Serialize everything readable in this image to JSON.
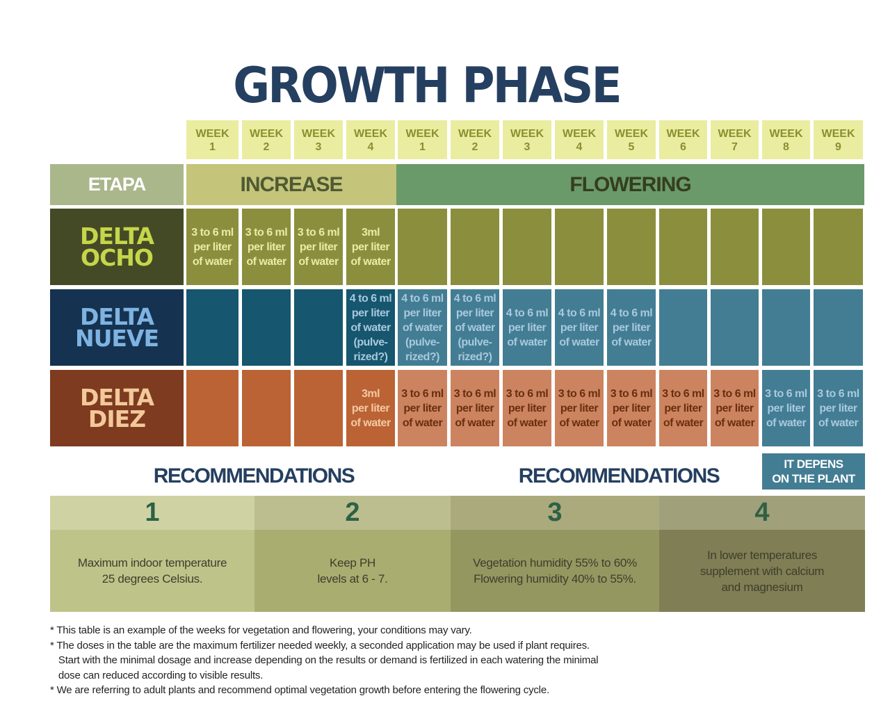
{
  "title": "GROWTH PHASE",
  "weeks": [
    {
      "label": "WEEK",
      "num": "1"
    },
    {
      "label": "WEEK",
      "num": "2"
    },
    {
      "label": "WEEK",
      "num": "3"
    },
    {
      "label": "WEEK",
      "num": "4"
    },
    {
      "label": "WEEK",
      "num": "1"
    },
    {
      "label": "WEEK",
      "num": "2"
    },
    {
      "label": "WEEK",
      "num": "3"
    },
    {
      "label": "WEEK",
      "num": "4"
    },
    {
      "label": "WEEK",
      "num": "5"
    },
    {
      "label": "WEEK",
      "num": "6"
    },
    {
      "label": "WEEK",
      "num": "7"
    },
    {
      "label": "WEEK",
      "num": "8"
    },
    {
      "label": "WEEK",
      "num": "9"
    }
  ],
  "stages": {
    "etapa": "ETAPA",
    "increase": "INCREASE",
    "flowering": "FLOWERING"
  },
  "products": [
    {
      "line1": "DELTA",
      "line2": "OCHO",
      "color": "#c5d64a",
      "bg": "#454a26"
    },
    {
      "line1": "DELTA",
      "line2": "NUEVE",
      "color": "#7eb3e2",
      "bg": "#153350"
    },
    {
      "line1": "DELTA",
      "line2": "DIEZ",
      "color": "#f2c99a",
      "bg": "#7e3b20"
    }
  ],
  "ocho": [
    "3 to 6 ml\nper liter\nof water",
    "3 to 6 ml\nper liter\nof water",
    "3 to 6 ml\nper liter\nof water",
    "3ml\nper liter\nof water",
    "",
    "",
    "",
    "",
    "",
    "",
    "",
    "",
    ""
  ],
  "nueve": [
    "",
    "",
    "",
    "4 to 6 ml\nper liter\nof water\n(pulve-\nrized?)",
    "4 to 6 ml\nper liter\nof water\n(pulve-\nrized?)",
    "4 to 6 ml\nper liter\nof water\n(pulve-\nrized?)",
    "4 to 6 ml\nper liter\nof water",
    "4 to 6 ml\nper liter\nof water",
    "4 to 6 ml\nper liter\nof water",
    "",
    "",
    "",
    ""
  ],
  "diez": [
    "",
    "",
    "",
    "3ml\nper liter\nof water",
    "3 to 6 ml\nper liter\nof water",
    "3 to 6 ml\nper liter\nof water",
    "3 to 6 ml\nper liter\nof water",
    "3 to 6 ml\nper liter\nof water",
    "3 to 6 ml\nper liter\nof water",
    "3 to 6 ml\nper liter\nof water",
    "3 to 6 ml\nper liter\nof water",
    "3 to 6 ml\nper liter\nof water",
    "3 to 6 ml\nper liter\nof water"
  ],
  "recommendations": {
    "heading_left": "RECOMMENDATIONS",
    "heading_right": "RECOMMENDATIONS",
    "depends": "IT DEPENS\nON THE PLANT",
    "items": [
      {
        "num": "1",
        "text": "Maximum indoor temperature\n25 degrees Celsius."
      },
      {
        "num": "2",
        "text": "Keep PH\nlevels at 6 - 7."
      },
      {
        "num": "3",
        "text": "Vegetation humidity 55% to 60%\nFlowering humidity 40% to 55%."
      },
      {
        "num": "4",
        "text": "In lower temperatures\nsupplement with calcium\nand magnesium"
      }
    ]
  },
  "notes": [
    "* This table is an example of the weeks for vegetation and flowering, your conditions may vary.",
    "* The doses in the table are the maximum fertilizer needed weekly, a seconded application may be used if plant requires.",
    "   Start with the minimal dosage and increase depending on the results or demand is fertilized in each watering the minimal",
    "   dose can reduced according to visible results.",
    "* We are referring to adult plants and recommend optimal vegetation growth before entering the flowering cycle."
  ]
}
